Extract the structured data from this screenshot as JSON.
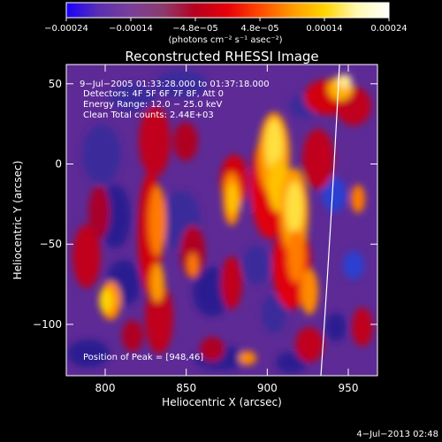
{
  "colorbar": {
    "ticks": [
      "−0.00024",
      "−0.00014",
      "−4.8e−05",
      "4.8e−05",
      "0.00014",
      "0.00024"
    ],
    "unit_label": "(photons cm⁻² s⁻¹ asec⁻²)",
    "colors": [
      "#1a00ff",
      "#5a2fb0",
      "#7b3f9a",
      "#8c3a6e",
      "#b8001f",
      "#e8000a",
      "#ff4a00",
      "#ff9a00",
      "#ffd400",
      "#fff9b0",
      "#ffffff"
    ]
  },
  "image": {
    "title": "Reconstructed RHESSI Image",
    "annotations": [
      "9−Jul−2005 01:33:28.000 to 01:37:18.000",
      "Detectors: 4F 5F 6F 7F 8F, Att 0",
      "Energy Range: 12.0 − 25.0 keV",
      "Clean     Total counts: 2.44E+03"
    ],
    "peak_label": "Position of Peak = [948,46]",
    "x_axis": {
      "label": "Heliocentric X (arcsec)",
      "ticks": [
        "800",
        "850",
        "900",
        "950"
      ],
      "range": [
        776,
        968
      ]
    },
    "y_axis": {
      "label": "Heliocentric Y (arcsec)",
      "ticks": [
        "50",
        "0",
        "−50",
        "−100"
      ],
      "range": [
        -132,
        62
      ]
    },
    "limb_color": "#ffffff"
  },
  "footer": {
    "date": "4−Jul−2013 02:48"
  }
}
